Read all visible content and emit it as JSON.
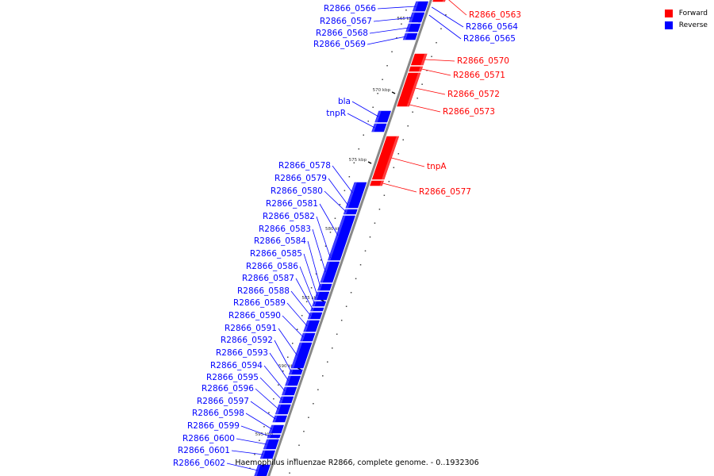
{
  "caption": "Haemophilus influenzae R2866, complete genome. - 0..1932306",
  "legend": [
    {
      "label": "Forward",
      "color": "#ff0000"
    },
    {
      "label": "Reverse",
      "color": "#0000ff"
    }
  ],
  "colors": {
    "forward": "#ff0000",
    "reverse": "#0000ff",
    "backbone": "#888888"
  },
  "ticks": [
    {
      "kbp": 565,
      "label": "565 kbp"
    },
    {
      "kbp": 570,
      "label": "570 kbp"
    },
    {
      "kbp": 575,
      "label": "575 kbp"
    },
    {
      "kbp": 580,
      "label": "580 kbp"
    },
    {
      "kbp": 585,
      "label": "585 kbp"
    },
    {
      "kbp": 590,
      "label": "590 kbp"
    },
    {
      "kbp": 595,
      "label": "595 kbp"
    }
  ],
  "genes": [
    {
      "name": "R2866_0563",
      "strand": "forward"
    },
    {
      "name": "R2866_0564",
      "strand": "reverse"
    },
    {
      "name": "R2866_0565",
      "strand": "reverse"
    },
    {
      "name": "R2866_0566",
      "strand": "reverse"
    },
    {
      "name": "R2866_0567",
      "strand": "reverse"
    },
    {
      "name": "R2866_0568",
      "strand": "reverse"
    },
    {
      "name": "R2866_0569",
      "strand": "reverse"
    },
    {
      "name": "R2866_0570",
      "strand": "forward"
    },
    {
      "name": "R2866_0571",
      "strand": "forward"
    },
    {
      "name": "R2866_0572",
      "strand": "forward"
    },
    {
      "name": "R2866_0573",
      "strand": "forward"
    },
    {
      "name": "bla",
      "strand": "reverse"
    },
    {
      "name": "tnpR",
      "strand": "reverse"
    },
    {
      "name": "tnpA",
      "strand": "forward"
    },
    {
      "name": "R2866_0577",
      "strand": "forward"
    },
    {
      "name": "R2866_0578",
      "strand": "reverse"
    },
    {
      "name": "R2866_0579",
      "strand": "reverse"
    },
    {
      "name": "R2866_0580",
      "strand": "reverse"
    },
    {
      "name": "R2866_0581",
      "strand": "reverse"
    },
    {
      "name": "R2866_0582",
      "strand": "reverse"
    },
    {
      "name": "R2866_0583",
      "strand": "reverse"
    },
    {
      "name": "R2866_0584",
      "strand": "reverse"
    },
    {
      "name": "R2866_0585",
      "strand": "reverse"
    },
    {
      "name": "R2866_0586",
      "strand": "reverse"
    },
    {
      "name": "R2866_0587",
      "strand": "reverse"
    },
    {
      "name": "R2866_0588",
      "strand": "reverse"
    },
    {
      "name": "R2866_0589",
      "strand": "reverse"
    },
    {
      "name": "R2866_0590",
      "strand": "reverse"
    },
    {
      "name": "R2866_0591",
      "strand": "reverse"
    },
    {
      "name": "R2866_0592",
      "strand": "reverse"
    },
    {
      "name": "R2866_0593",
      "strand": "reverse"
    },
    {
      "name": "R2866_0594",
      "strand": "reverse"
    },
    {
      "name": "R2866_0595",
      "strand": "reverse"
    },
    {
      "name": "R2866_0596",
      "strand": "reverse"
    },
    {
      "name": "R2866_0597",
      "strand": "reverse"
    },
    {
      "name": "R2866_0598",
      "strand": "reverse"
    },
    {
      "name": "R2866_0599",
      "strand": "reverse"
    },
    {
      "name": "R2866_0600",
      "strand": "reverse"
    },
    {
      "name": "R2866_0601",
      "strand": "reverse"
    },
    {
      "name": "R2866_0602",
      "strand": "reverse"
    }
  ]
}
